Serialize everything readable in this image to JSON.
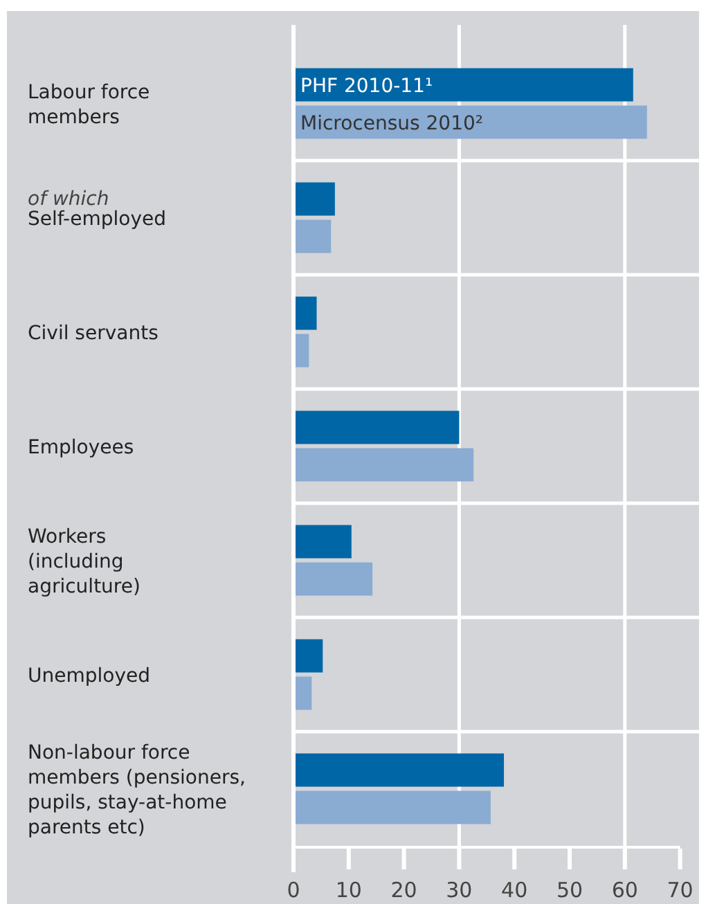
{
  "chart_data": {
    "type": "bar",
    "orientation": "horizontal",
    "categories": [
      "Labour force\nmembers",
      "Self-employed",
      "Civil servants",
      "Employees",
      "Workers\n(including\nagriculture)",
      "Unemployed",
      "Non-labour force\nmembers (pensioners,\npupils, stay-at-home\nparents etc)"
    ],
    "series": [
      {
        "name": "PHF 2010-11¹",
        "color": "#0066a6",
        "values": [
          61.5,
          7.5,
          4.2,
          30,
          10.5,
          5.3,
          38.1
        ]
      },
      {
        "name": "Microcensus 2010²",
        "color": "#8aabd2",
        "values": [
          64,
          6.8,
          2.8,
          32.6,
          14.3,
          3.3,
          35.7
        ]
      }
    ],
    "xlim": [
      0,
      70
    ],
    "xticks": [
      0,
      10,
      20,
      30,
      40,
      50,
      60,
      70
    ],
    "ref_lines": [
      {
        "axis": "x",
        "value": 30,
        "color": "#ffffff"
      },
      {
        "axis": "x",
        "value": 60,
        "color": "#ffffff"
      }
    ],
    "annotations": [
      "of which"
    ],
    "legend": "top left"
  }
}
